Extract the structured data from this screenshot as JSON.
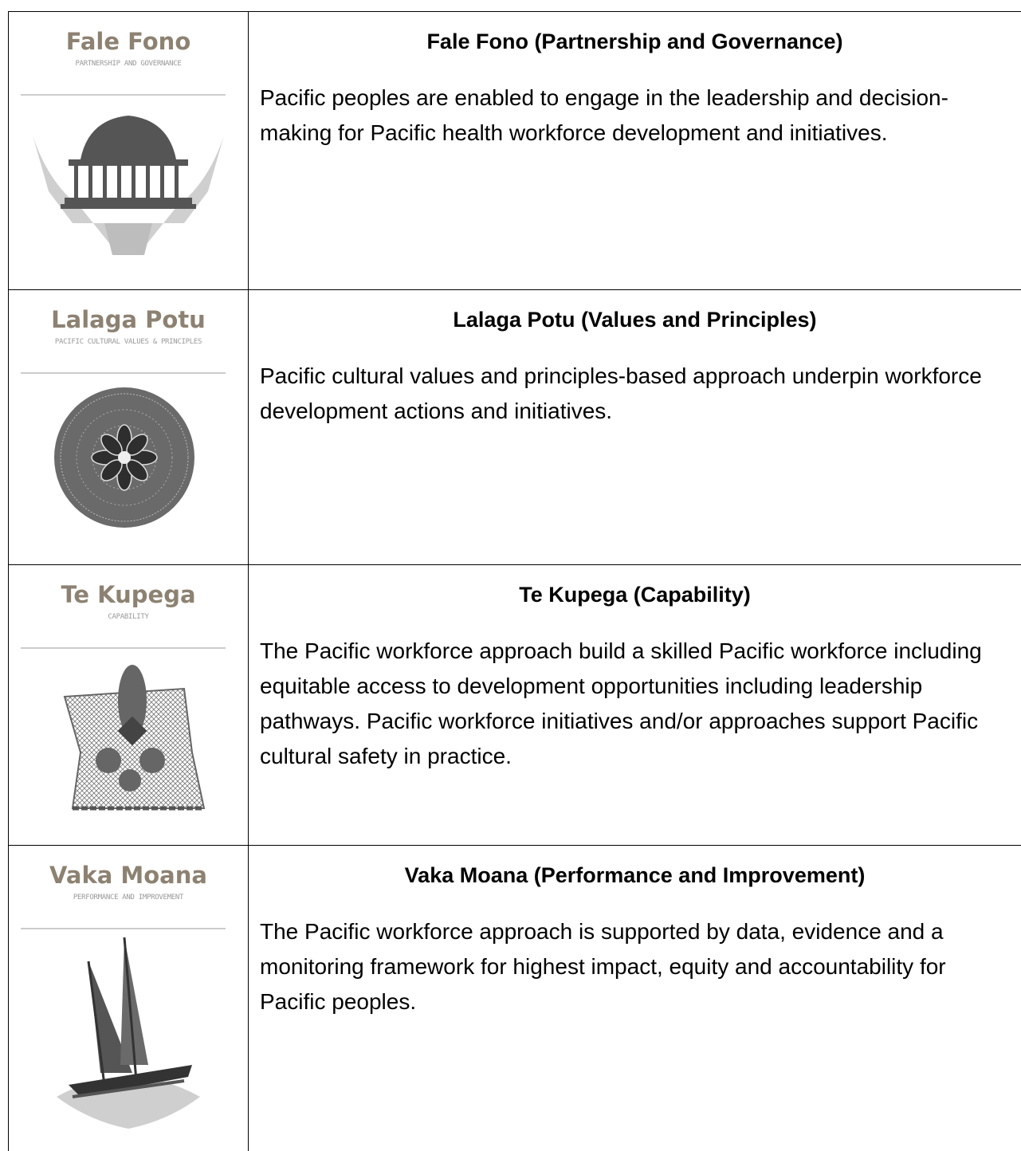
{
  "rows": [
    {
      "icon": {
        "title": "Fale Fono",
        "subtitle": "PARTNERSHIP AND GOVERNANCE"
      },
      "heading": "Fale Fono (Partnership and Governance)",
      "body": "Pacific peoples are enabled to engage in the leadership and decision-making for Pacific health workforce development and initiatives."
    },
    {
      "icon": {
        "title": "Lalaga Potu",
        "subtitle": "PACIFIC CULTURAL VALUES & PRINCIPLES"
      },
      "heading": "Lalaga Potu (Values and Principles)",
      "body": "Pacific cultural values and principles-based approach underpin workforce development actions and initiatives."
    },
    {
      "icon": {
        "title": "Te Kupega",
        "subtitle": "CAPABILITY"
      },
      "heading": "Te Kupega (Capability)",
      "body": "The Pacific workforce approach build a skilled Pacific workforce including equitable access to development opportunities including leadership pathways. Pacific workforce initiatives and/or approaches support Pacific cultural safety in practice."
    },
    {
      "icon": {
        "title": "Vaka Moana",
        "subtitle": "PERFORMANCE AND IMPROVEMENT"
      },
      "heading": "Vaka Moana (Performance and Improvement)",
      "body": "The Pacific workforce approach is supported by data, evidence and a monitoring framework for highest impact, equity and accountability for Pacific peoples."
    }
  ]
}
